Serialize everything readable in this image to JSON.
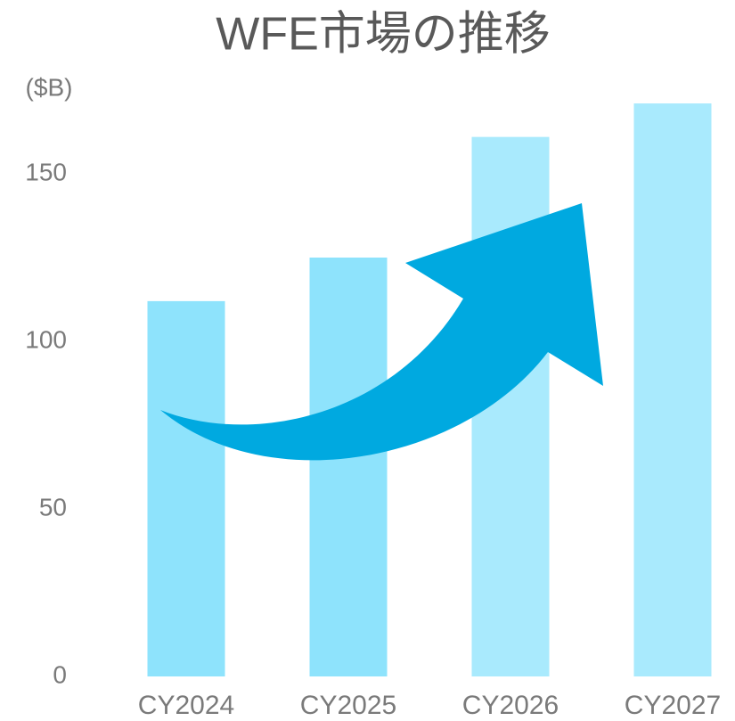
{
  "chart_data": {
    "type": "bar",
    "title": "WFE市場の推移",
    "y_label": "($B)",
    "categories": [
      "CY2024",
      "CY2025",
      "CY2026",
      "CY2027"
    ],
    "values": [
      112,
      125,
      161,
      171
    ],
    "colors": [
      "#8ee3fc",
      "#8ee3fc",
      "#a9eafd",
      "#a9eafd"
    ],
    "ylim": [
      0,
      175
    ],
    "yticks": [
      0,
      50,
      100,
      150
    ],
    "grid": false
  }
}
